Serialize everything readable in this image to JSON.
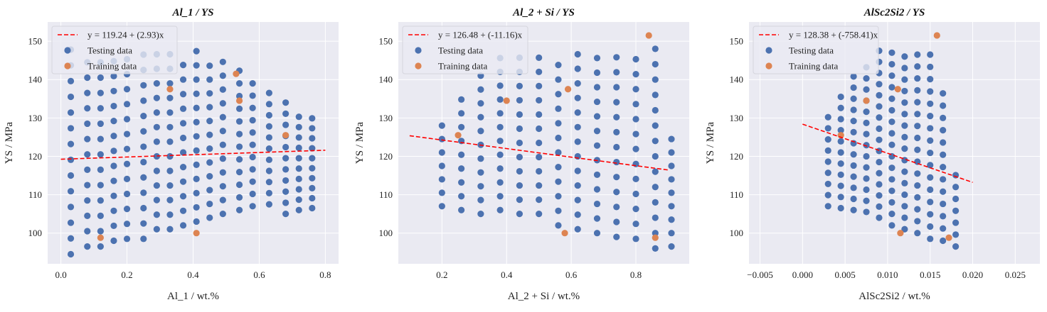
{
  "chart_data": [
    {
      "type": "scatter",
      "title": "Al_1 / YS",
      "xlabel": "Al_1 / wt.%",
      "ylabel": "YS / MPa",
      "xlim": [
        -0.04,
        0.84
      ],
      "ylim": [
        92,
        155
      ],
      "xticks": [
        0.0,
        0.2,
        0.4,
        0.6,
        0.8
      ],
      "xtick_labels": [
        "0.0",
        "0.2",
        "0.4",
        "0.6",
        "0.8"
      ],
      "yticks": [
        100,
        110,
        120,
        130,
        140,
        150
      ],
      "ytick_labels": [
        "100",
        "110",
        "120",
        "130",
        "140",
        "150"
      ],
      "grid": true,
      "legend_position": "top-left",
      "fit_line": {
        "label": "y = 119.24 + (2.93)x",
        "intercept": 119.24,
        "slope": 2.93,
        "x": [
          0.0,
          0.8
        ],
        "color": "#ff0000"
      },
      "series": [
        {
          "name": "Testing data",
          "color": "#4c72b0",
          "groups": [
            {
              "x": 0.03,
              "y_min": 94.5,
              "y_max": 148.0,
              "step": 4.1
            },
            {
              "x": 0.08,
              "y_min": 96.5,
              "y_max": 147.5,
              "step": 4.0
            },
            {
              "x": 0.12,
              "y_min": 96.5,
              "y_max": 147.5,
              "step": 4.0
            },
            {
              "x": 0.16,
              "y_min": 98.0,
              "y_max": 148.0,
              "step": 3.9
            },
            {
              "x": 0.2,
              "y_min": 98.5,
              "y_max": 147.0,
              "step": 3.9
            },
            {
              "x": 0.25,
              "y_min": 98.5,
              "y_max": 147.0,
              "step": 4.0
            },
            {
              "x": 0.29,
              "y_min": 101.0,
              "y_max": 147.0,
              "step": 3.8
            },
            {
              "x": 0.33,
              "y_min": 101.0,
              "y_max": 147.0,
              "step": 3.8
            },
            {
              "x": 0.37,
              "y_min": 102.0,
              "y_max": 147.5,
              "step": 3.8
            },
            {
              "x": 0.41,
              "y_min": 103.0,
              "y_max": 147.5,
              "step": 3.7
            },
            {
              "x": 0.45,
              "y_min": 104.0,
              "y_max": 146.5,
              "step": 3.6
            },
            {
              "x": 0.49,
              "y_min": 105.0,
              "y_max": 145.0,
              "step": 3.6
            },
            {
              "x": 0.54,
              "y_min": 106.0,
              "y_max": 143.0,
              "step": 3.3
            },
            {
              "x": 0.58,
              "y_min": 107.0,
              "y_max": 142.0,
              "step": 3.2
            },
            {
              "x": 0.63,
              "y_min": 107.5,
              "y_max": 137.0,
              "step": 2.9
            },
            {
              "x": 0.68,
              "y_min": 105.0,
              "y_max": 134.0,
              "step": 2.9
            },
            {
              "x": 0.72,
              "y_min": 106.0,
              "y_max": 132.0,
              "step": 2.7
            },
            {
              "x": 0.76,
              "y_min": 106.5,
              "y_max": 131.0,
              "step": 2.6
            }
          ]
        },
        {
          "name": "Training data",
          "color": "#dd8452",
          "points": [
            [
              0.33,
              137.5
            ],
            [
              0.53,
              141.5
            ],
            [
              0.54,
              134.5
            ],
            [
              0.68,
              125.5
            ],
            [
              0.41,
              100.0
            ],
            [
              0.12,
              98.8
            ]
          ]
        }
      ]
    },
    {
      "type": "scatter",
      "title": "Al_2 + Si / YS",
      "xlabel": "Al_2 + Si / wt.%",
      "ylabel": "YS / MPa",
      "xlim": [
        0.065,
        0.965
      ],
      "ylim": [
        92,
        155
      ],
      "xticks": [
        0.2,
        0.4,
        0.6,
        0.8
      ],
      "xtick_labels": [
        "0.2",
        "0.4",
        "0.6",
        "0.8"
      ],
      "yticks": [
        100,
        110,
        120,
        130,
        140,
        150
      ],
      "ytick_labels": [
        "100",
        "110",
        "120",
        "130",
        "140",
        "150"
      ],
      "grid": true,
      "legend_position": "top-left",
      "fit_line": {
        "label": "y = 126.48 + (-11.16)x",
        "intercept": 126.48,
        "slope": -11.16,
        "x": [
          0.1,
          0.9
        ],
        "color": "#ff0000"
      },
      "series": [
        {
          "name": "Testing data",
          "color": "#4c72b0",
          "groups": [
            {
              "x": 0.2,
              "y_min": 107.0,
              "y_max": 131.0,
              "step": 3.5
            },
            {
              "x": 0.26,
              "y_min": 106.0,
              "y_max": 137.0,
              "step": 3.6
            },
            {
              "x": 0.32,
              "y_min": 105.0,
              "y_max": 142.0,
              "step": 3.6
            },
            {
              "x": 0.38,
              "y_min": 106.0,
              "y_max": 146.0,
              "step": 3.6
            },
            {
              "x": 0.44,
              "y_min": 105.0,
              "y_max": 147.0,
              "step": 3.7
            },
            {
              "x": 0.5,
              "y_min": 105.0,
              "y_max": 147.0,
              "step": 3.7
            },
            {
              "x": 0.56,
              "y_min": 102.0,
              "y_max": 147.0,
              "step": 3.8
            },
            {
              "x": 0.62,
              "y_min": 101.0,
              "y_max": 147.0,
              "step": 3.8
            },
            {
              "x": 0.68,
              "y_min": 100.0,
              "y_max": 147.0,
              "step": 3.8
            },
            {
              "x": 0.74,
              "y_min": 99.0,
              "y_max": 147.0,
              "step": 3.9
            },
            {
              "x": 0.8,
              "y_min": 98.5,
              "y_max": 147.5,
              "step": 3.9
            },
            {
              "x": 0.86,
              "y_min": 96.0,
              "y_max": 148.0,
              "step": 4.0
            },
            {
              "x": 0.91,
              "y_min": 96.5,
              "y_max": 127.0,
              "step": 3.5
            }
          ]
        },
        {
          "name": "Training data",
          "color": "#dd8452",
          "points": [
            [
              0.25,
              125.5
            ],
            [
              0.4,
              134.5
            ],
            [
              0.59,
              137.5
            ],
            [
              0.58,
              100.0
            ],
            [
              0.84,
              151.5
            ],
            [
              0.86,
              98.8
            ]
          ]
        }
      ]
    },
    {
      "type": "scatter",
      "title": "AlSc2Si2 / YS",
      "xlabel": "AlSc2Si2 / wt.%",
      "ylabel": "YS / MPa",
      "xlim": [
        -0.0063,
        0.0279
      ],
      "ylim": [
        92,
        155
      ],
      "xticks": [
        -0.005,
        0.0,
        0.005,
        0.01,
        0.015,
        0.02,
        0.025
      ],
      "xtick_labels": [
        "−0.005",
        "0.000",
        "0.005",
        "0.010",
        "0.015",
        "0.020",
        "0.025"
      ],
      "yticks": [
        100,
        110,
        120,
        130,
        140,
        150
      ],
      "ytick_labels": [
        "100",
        "110",
        "120",
        "130",
        "140",
        "150"
      ],
      "grid": true,
      "legend_position": "top-left",
      "fit_line": {
        "label": "y = 128.38 + (-758.41)x",
        "intercept": 128.38,
        "slope": -758.41,
        "x": [
          0.0,
          0.02
        ],
        "color": "#ff0000"
      },
      "series": [
        {
          "name": "Testing data",
          "color": "#4c72b0",
          "groups": [
            {
              "x": 0.003,
              "y_min": 107.0,
              "y_max": 131.0,
              "step": 2.9
            },
            {
              "x": 0.0045,
              "y_min": 106.5,
              "y_max": 136.0,
              "step": 2.9
            },
            {
              "x": 0.006,
              "y_min": 106.0,
              "y_max": 141.0,
              "step": 2.9
            },
            {
              "x": 0.0075,
              "y_min": 105.5,
              "y_max": 145.5,
              "step": 2.9
            },
            {
              "x": 0.009,
              "y_min": 104.0,
              "y_max": 147.5,
              "step": 2.9
            },
            {
              "x": 0.0105,
              "y_min": 102.0,
              "y_max": 147.5,
              "step": 3.0
            },
            {
              "x": 0.012,
              "y_min": 101.0,
              "y_max": 147.0,
              "step": 3.0
            },
            {
              "x": 0.0135,
              "y_min": 100.0,
              "y_max": 147.5,
              "step": 3.1
            },
            {
              "x": 0.015,
              "y_min": 98.5,
              "y_max": 148.0,
              "step": 3.2
            },
            {
              "x": 0.0165,
              "y_min": 98.0,
              "y_max": 139.0,
              "step": 3.2
            },
            {
              "x": 0.018,
              "y_min": 96.5,
              "y_max": 118.0,
              "step": 3.1
            }
          ]
        },
        {
          "name": "Training data",
          "color": "#dd8452",
          "points": [
            [
              0.0045,
              125.5
            ],
            [
              0.0075,
              134.5
            ],
            [
              0.0112,
              137.5
            ],
            [
              0.0115,
              100.0
            ],
            [
              0.0158,
              151.5
            ],
            [
              0.0172,
              98.8
            ]
          ]
        }
      ]
    }
  ]
}
